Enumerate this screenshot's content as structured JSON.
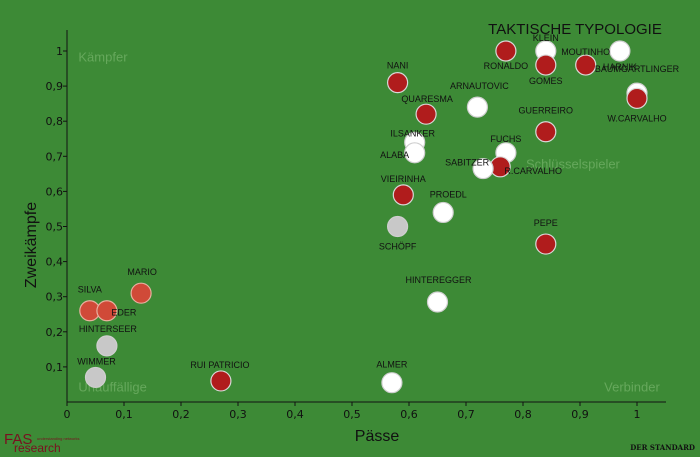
{
  "chart_data": {
    "type": "scatter",
    "title": "TAKTISCHE TYPOLOGIE",
    "xlabel": "Pässe",
    "ylabel": "Zweikämpfe",
    "xlim": [
      0,
      1.05
    ],
    "ylim": [
      0,
      1.05
    ],
    "xticks": [
      "0",
      "0,1",
      "0,2",
      "0,3",
      "0,4",
      "0,5",
      "0,6",
      "0,7",
      "0,8",
      "0,9",
      "1"
    ],
    "yticks": [
      "0,1",
      "0,2",
      "0,3",
      "0,4",
      "0,5",
      "0,6",
      "0,7",
      "0,8",
      "0,9",
      "1"
    ],
    "grid": false,
    "zones": [
      {
        "label": "Kämpfer",
        "corner": "top-left"
      },
      {
        "label": "Schlüsselspieler",
        "corner": "right-middle"
      },
      {
        "label": "Unauffällige",
        "corner": "bottom-left"
      },
      {
        "label": "Verbinder",
        "corner": "bottom-right"
      }
    ],
    "colors": {
      "portugal": "#b01c1c",
      "austria": "#ffffff",
      "austria_gk": "#c8c8c8",
      "other": "#d04a38"
    },
    "points": [
      {
        "name": "RONALDO",
        "x": 0.77,
        "y": 1.0,
        "group": "portugal"
      },
      {
        "name": "KLEIN",
        "x": 0.84,
        "y": 1.0,
        "group": "austria"
      },
      {
        "name": "MOUTINHO",
        "x": 0.91,
        "y": 0.96,
        "group": "portugal"
      },
      {
        "name": "HARNIK",
        "x": 0.97,
        "y": 1.0,
        "group": "austria"
      },
      {
        "name": "GOMES",
        "x": 0.84,
        "y": 0.96,
        "group": "portugal"
      },
      {
        "name": "NANI",
        "x": 0.58,
        "y": 0.91,
        "group": "portugal"
      },
      {
        "name": "ARNAUTOVIC",
        "x": 0.72,
        "y": 0.84,
        "group": "austria"
      },
      {
        "name": "BAUMGARTLINGER",
        "x": 1.0,
        "y": 0.88,
        "group": "austria"
      },
      {
        "name": "W.CARVALHO",
        "x": 1.0,
        "y": 0.865,
        "group": "portugal"
      },
      {
        "name": "QUARESMA",
        "x": 0.63,
        "y": 0.82,
        "group": "portugal"
      },
      {
        "name": "GUERREIRO",
        "x": 0.84,
        "y": 0.77,
        "group": "portugal"
      },
      {
        "name": "ILSANKER",
        "x": 0.61,
        "y": 0.74,
        "group": "austria"
      },
      {
        "name": "ALABA",
        "x": 0.61,
        "y": 0.71,
        "group": "austria"
      },
      {
        "name": "FUCHS",
        "x": 0.77,
        "y": 0.71,
        "group": "austria"
      },
      {
        "name": "R.CARVALHO",
        "x": 0.76,
        "y": 0.67,
        "group": "portugal"
      },
      {
        "name": "SABITZER",
        "x": 0.73,
        "y": 0.665,
        "group": "austria"
      },
      {
        "name": "VIEIRINHA",
        "x": 0.59,
        "y": 0.59,
        "group": "portugal"
      },
      {
        "name": "PROEDL",
        "x": 0.66,
        "y": 0.54,
        "group": "austria"
      },
      {
        "name": "SCHÖPF",
        "x": 0.58,
        "y": 0.5,
        "group": "austria_gk"
      },
      {
        "name": "PEPE",
        "x": 0.84,
        "y": 0.45,
        "group": "portugal"
      },
      {
        "name": "HINTEREGGER",
        "x": 0.65,
        "y": 0.285,
        "group": "austria"
      },
      {
        "name": "MARIO",
        "x": 0.13,
        "y": 0.31,
        "group": "other"
      },
      {
        "name": "SILVA",
        "x": 0.04,
        "y": 0.26,
        "group": "other"
      },
      {
        "name": "EDER",
        "x": 0.07,
        "y": 0.26,
        "group": "other"
      },
      {
        "name": "HINTERSEER",
        "x": 0.07,
        "y": 0.16,
        "group": "austria_gk"
      },
      {
        "name": "WIMMER",
        "x": 0.05,
        "y": 0.07,
        "group": "austria_gk"
      },
      {
        "name": "RUI PATRICIO",
        "x": 0.27,
        "y": 0.06,
        "group": "portugal"
      },
      {
        "name": "ALMER",
        "x": 0.57,
        "y": 0.055,
        "group": "austria"
      }
    ]
  },
  "branding": {
    "fas_top": "FAS",
    "fas_bottom": "research",
    "fas_sub": "understanding networks",
    "publisher": "DER STANDARD"
  }
}
